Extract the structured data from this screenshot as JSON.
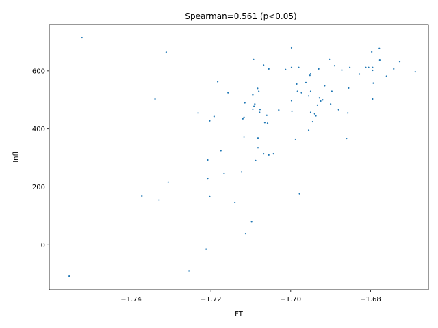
{
  "chart_data": {
    "type": "scatter",
    "title": "Spearman=0.561 (p<0.05)",
    "xlabel": "FT",
    "ylabel": "Infl",
    "xlim": [
      -1.7605,
      -1.6655
    ],
    "ylim": [
      -155,
      760
    ],
    "xticks": [
      -1.74,
      -1.72,
      -1.7,
      -1.68
    ],
    "xtick_labels": [
      "−1.74",
      "−1.72",
      "−1.70",
      "−1.68"
    ],
    "yticks": [
      0,
      200,
      400,
      600
    ],
    "ytick_labels": [
      "0",
      "200",
      "400",
      "600"
    ],
    "grid": false,
    "marker_color": "#1f77b4",
    "points": [
      [
        -1.7523,
        715
      ],
      [
        -1.7555,
        -108
      ],
      [
        -1.7373,
        168
      ],
      [
        -1.734,
        503
      ],
      [
        -1.733,
        155
      ],
      [
        -1.7312,
        665
      ],
      [
        -1.7307,
        216
      ],
      [
        -1.7255,
        -90
      ],
      [
        -1.7232,
        455
      ],
      [
        -1.7212,
        -15
      ],
      [
        -1.7208,
        293
      ],
      [
        -1.7208,
        229
      ],
      [
        -1.7203,
        428
      ],
      [
        -1.7203,
        166
      ],
      [
        -1.7192,
        443
      ],
      [
        -1.7183,
        563
      ],
      [
        -1.7175,
        325
      ],
      [
        -1.7167,
        246
      ],
      [
        -1.7157,
        525
      ],
      [
        -1.714,
        147
      ],
      [
        -1.7123,
        252
      ],
      [
        -1.712,
        435
      ],
      [
        -1.7117,
        440
      ],
      [
        -1.7117,
        372
      ],
      [
        -1.7115,
        490
      ],
      [
        -1.7113,
        38
      ],
      [
        -1.7098,
        80
      ],
      [
        -1.7095,
        518
      ],
      [
        -1.7095,
        468
      ],
      [
        -1.7093,
        640
      ],
      [
        -1.7092,
        478
      ],
      [
        -1.709,
        486
      ],
      [
        -1.7088,
        291
      ],
      [
        -1.7083,
        540
      ],
      [
        -1.7082,
        368
      ],
      [
        -1.7082,
        335
      ],
      [
        -1.708,
        530
      ],
      [
        -1.7078,
        457
      ],
      [
        -1.7077,
        467
      ],
      [
        -1.7068,
        620
      ],
      [
        -1.7068,
        314
      ],
      [
        -1.7065,
        422
      ],
      [
        -1.706,
        447
      ],
      [
        -1.7058,
        420
      ],
      [
        -1.7055,
        607
      ],
      [
        -1.7055,
        310
      ],
      [
        -1.7043,
        314
      ],
      [
        -1.703,
        465
      ],
      [
        -1.7013,
        605
      ],
      [
        -1.6998,
        612
      ],
      [
        -1.6998,
        680
      ],
      [
        -1.6998,
        497
      ],
      [
        -1.6997,
        461
      ],
      [
        -1.6988,
        364
      ],
      [
        -1.6985,
        555
      ],
      [
        -1.6983,
        530
      ],
      [
        -1.698,
        612
      ],
      [
        -1.6978,
        176
      ],
      [
        -1.6973,
        525
      ],
      [
        -1.6962,
        560
      ],
      [
        -1.6955,
        514
      ],
      [
        -1.6955,
        396
      ],
      [
        -1.6952,
        585
      ],
      [
        -1.695,
        590
      ],
      [
        -1.695,
        530
      ],
      [
        -1.695,
        457
      ],
      [
        -1.6945,
        425
      ],
      [
        -1.694,
        452
      ],
      [
        -1.6937,
        445
      ],
      [
        -1.6933,
        482
      ],
      [
        -1.693,
        607
      ],
      [
        -1.6928,
        507
      ],
      [
        -1.6925,
        496
      ],
      [
        -1.692,
        500
      ],
      [
        -1.6915,
        549
      ],
      [
        -1.6903,
        640
      ],
      [
        -1.69,
        486
      ],
      [
        -1.6897,
        530
      ],
      [
        -1.689,
        618
      ],
      [
        -1.688,
        466
      ],
      [
        -1.6872,
        603
      ],
      [
        -1.686,
        366
      ],
      [
        -1.6857,
        455
      ],
      [
        -1.6855,
        541
      ],
      [
        -1.6852,
        612
      ],
      [
        -1.6828,
        589
      ],
      [
        -1.6812,
        612
      ],
      [
        -1.6805,
        612
      ],
      [
        -1.6797,
        666
      ],
      [
        -1.6795,
        612
      ],
      [
        -1.6795,
        503
      ],
      [
        -1.6795,
        602
      ],
      [
        -1.6793,
        558
      ],
      [
        -1.6778,
        678
      ],
      [
        -1.6777,
        637
      ],
      [
        -1.676,
        582
      ],
      [
        -1.6742,
        607
      ],
      [
        -1.6727,
        632
      ],
      [
        -1.6688,
        597
      ]
    ]
  }
}
